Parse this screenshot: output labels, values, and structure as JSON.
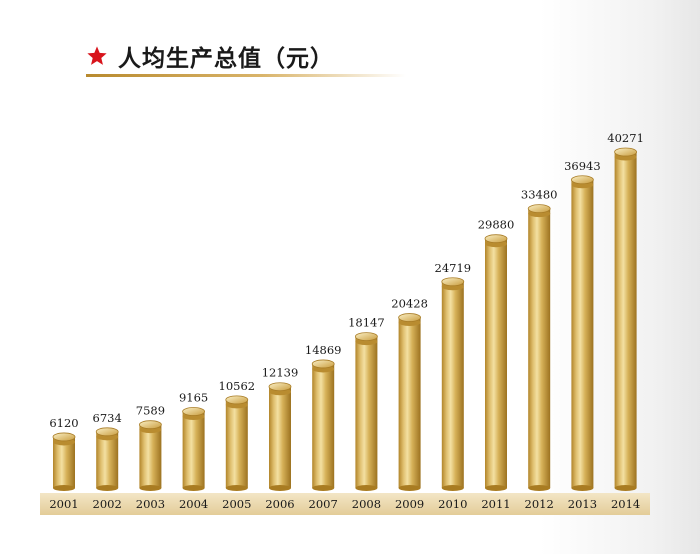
{
  "header": {
    "title": "人均生产总值（元）",
    "star_icon": "star-icon",
    "star_color": "#d8141c"
  },
  "chart_data": {
    "type": "bar",
    "title": "人均生产总值（元）",
    "categories": [
      "2001",
      "2002",
      "2003",
      "2004",
      "2005",
      "2006",
      "2007",
      "2008",
      "2009",
      "2010",
      "2011",
      "2012",
      "2013",
      "2014"
    ],
    "values": [
      6120,
      6734,
      7589,
      9165,
      10562,
      12139,
      14869,
      18147,
      20428,
      24719,
      29880,
      33480,
      36943,
      40271
    ],
    "xlabel": "",
    "ylabel": "",
    "ylim": [
      0,
      40271
    ],
    "grid": false,
    "legend": "none",
    "colors": {
      "bar_light": "#f2dc98",
      "bar_mid": "#d9b55a",
      "bar_dark": "#a97c22",
      "axis_strip": "#ecd9b0"
    }
  }
}
